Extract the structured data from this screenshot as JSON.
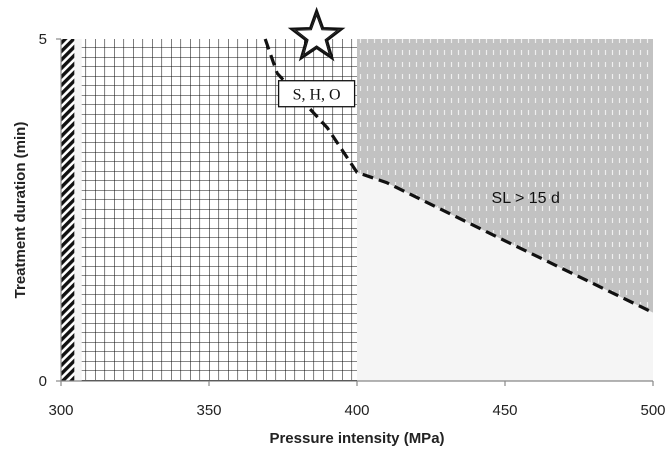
{
  "chart_data": {
    "type": "area",
    "xlabel": "Pressure intensity (MPa)",
    "ylabel": "Treatment duration (min)",
    "xlim": [
      300,
      500
    ],
    "ylim": [
      0,
      5
    ],
    "x_ticks": [
      "300",
      "350",
      "400",
      "450",
      "500"
    ],
    "y_ticks": [
      "0",
      "5"
    ],
    "grid": false,
    "regions": [
      {
        "pattern": "diagonal-hatch",
        "x_range": [
          300,
          304.5
        ],
        "y_range": [
          0,
          5
        ]
      },
      {
        "pattern": "crosshatch-grid",
        "x_range": [
          307,
          400
        ],
        "y_range": [
          0,
          5
        ]
      },
      {
        "pattern": "dotted-gray",
        "bounded_below_by": "shelf_life_boundary"
      },
      {
        "pattern": "light-gray",
        "bounded_above_by": "shelf_life_boundary"
      }
    ],
    "shelf_life_boundary": {
      "style": "dashed",
      "x": [
        369,
        373,
        390,
        400,
        410,
        450,
        500
      ],
      "y": [
        5,
        4.5,
        3.7,
        3.05,
        2.9,
        2.05,
        1.0
      ]
    },
    "annotations": [
      {
        "text": "SL > 15 d",
        "x": 457,
        "y": 2.6
      },
      {
        "text": "S, H, O",
        "x": 385,
        "y": 4.2,
        "boxed": true
      },
      {
        "marker": "star",
        "x": 385,
        "y": 5
      }
    ]
  }
}
